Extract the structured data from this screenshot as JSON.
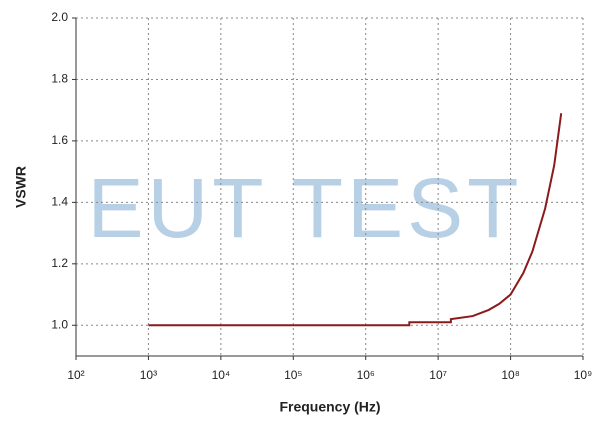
{
  "chart_data": {
    "type": "line",
    "xlabel": "Frequency (Hz)",
    "ylabel": "VSWR",
    "watermark": "EUT TEST",
    "log_x": true,
    "grid": true,
    "xlim": [
      100,
      1000000000
    ],
    "ylim": [
      0.9,
      2.0
    ],
    "xticks": [
      {
        "value": 100,
        "label": "10²"
      },
      {
        "value": 1000,
        "label": "10³"
      },
      {
        "value": 10000,
        "label": "10⁴"
      },
      {
        "value": 100000,
        "label": "10⁵"
      },
      {
        "value": 1000000,
        "label": "10⁶"
      },
      {
        "value": 10000000,
        "label": "10⁷"
      },
      {
        "value": 100000000,
        "label": "10⁸"
      },
      {
        "value": 1000000000,
        "label": "10⁹"
      }
    ],
    "yticks": [
      {
        "value": 1,
        "label": "1.0"
      },
      1.2,
      1.4,
      1.6,
      1.8,
      {
        "value": 2,
        "label": "2.0"
      }
    ],
    "series": [
      {
        "color": "#8b1a1a",
        "x": [
          1000,
          4000000,
          4000000,
          15000000,
          15000000,
          30000000,
          50000000,
          70000000,
          100000000,
          150000000,
          200000000,
          300000000,
          400000000,
          500000000
        ],
        "values": [
          1.0,
          1.0,
          1.01,
          1.01,
          1.02,
          1.03,
          1.05,
          1.07,
          1.1,
          1.17,
          1.24,
          1.38,
          1.52,
          1.69
        ]
      }
    ]
  }
}
